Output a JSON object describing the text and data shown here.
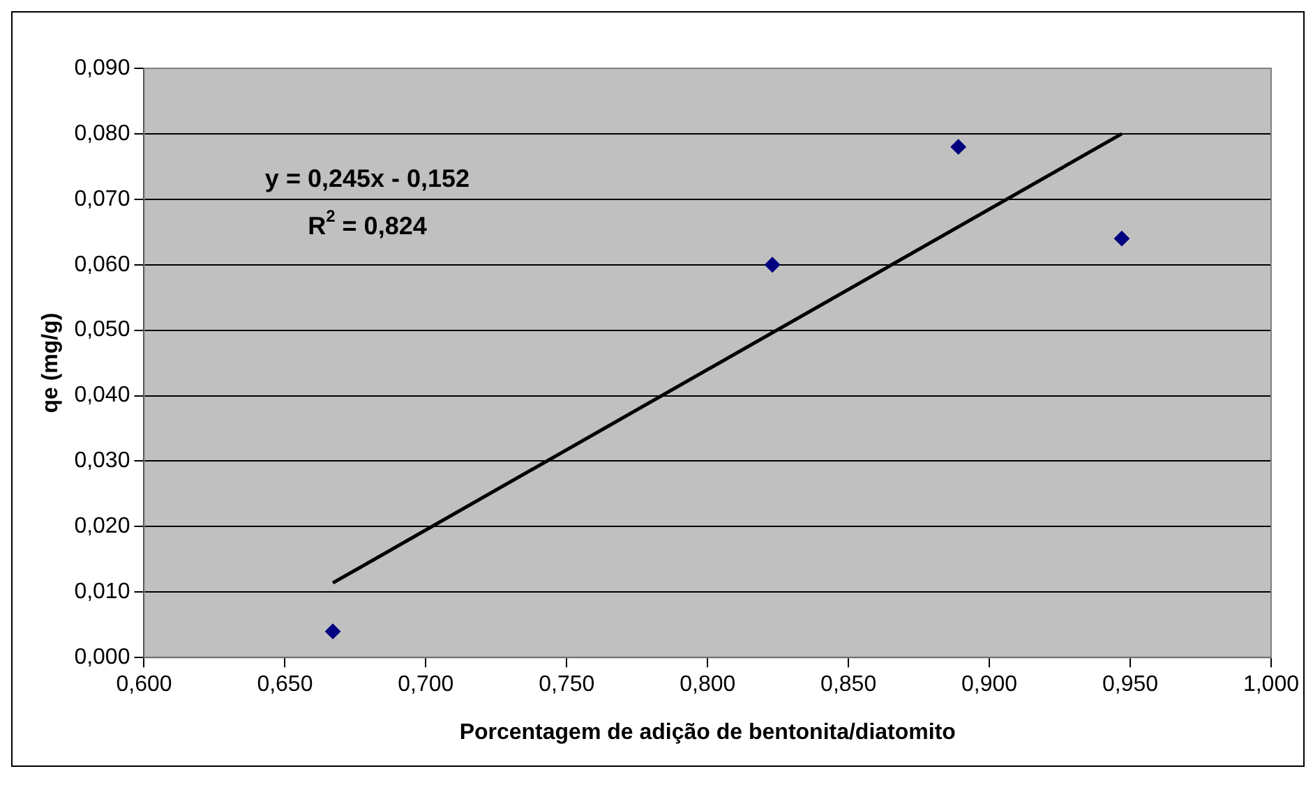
{
  "chart_data": {
    "type": "scatter",
    "xlabel": "Porcentagem de adição de bentonita/diatomito",
    "ylabel": "qe (mg/g)",
    "series": [
      {
        "color": "#000080",
        "marker": "diamond",
        "x": [
          0.667,
          0.823,
          0.889,
          0.947
        ],
        "values": [
          0.004,
          0.06,
          0.078,
          0.064
        ]
      },
      {
        "type": "line",
        "color": "#000000",
        "marker": "none",
        "line_style": "solid",
        "x": [
          0.667,
          0.947
        ],
        "values": [
          0.0114,
          0.08
        ]
      }
    ],
    "xlim": [
      0.6,
      1.0
    ],
    "xticks": [
      {
        "value": 0.6,
        "label": "0,600"
      },
      {
        "value": 0.65,
        "label": "0,650"
      },
      {
        "value": 0.7,
        "label": "0,700"
      },
      {
        "value": 0.75,
        "label": "0,750"
      },
      {
        "value": 0.8,
        "label": "0,800"
      },
      {
        "value": 0.85,
        "label": "0,850"
      },
      {
        "value": 0.9,
        "label": "0,900"
      },
      {
        "value": 0.95,
        "label": "0,950"
      },
      {
        "value": 1.0,
        "label": "1,000"
      }
    ],
    "ylim": [
      0,
      0.09
    ],
    "yticks": [
      {
        "value": 0,
        "label": "0,000"
      },
      {
        "value": 0.01,
        "label": "0,010"
      },
      {
        "value": 0.02,
        "label": "0,020"
      },
      {
        "value": 0.03,
        "label": "0,030"
      },
      {
        "value": 0.04,
        "label": "0,040"
      },
      {
        "value": 0.05,
        "label": "0,050"
      },
      {
        "value": 0.06,
        "label": "0,060"
      },
      {
        "value": 0.07,
        "label": "0,070"
      },
      {
        "value": 0.08,
        "label": "0,080"
      },
      {
        "value": 0.09,
        "label": "0,090"
      }
    ],
    "grid": "y",
    "legend": false,
    "annotations": [
      "y = 0,245x - 0,152",
      "R$^{2}$ = 0,824"
    ]
  }
}
